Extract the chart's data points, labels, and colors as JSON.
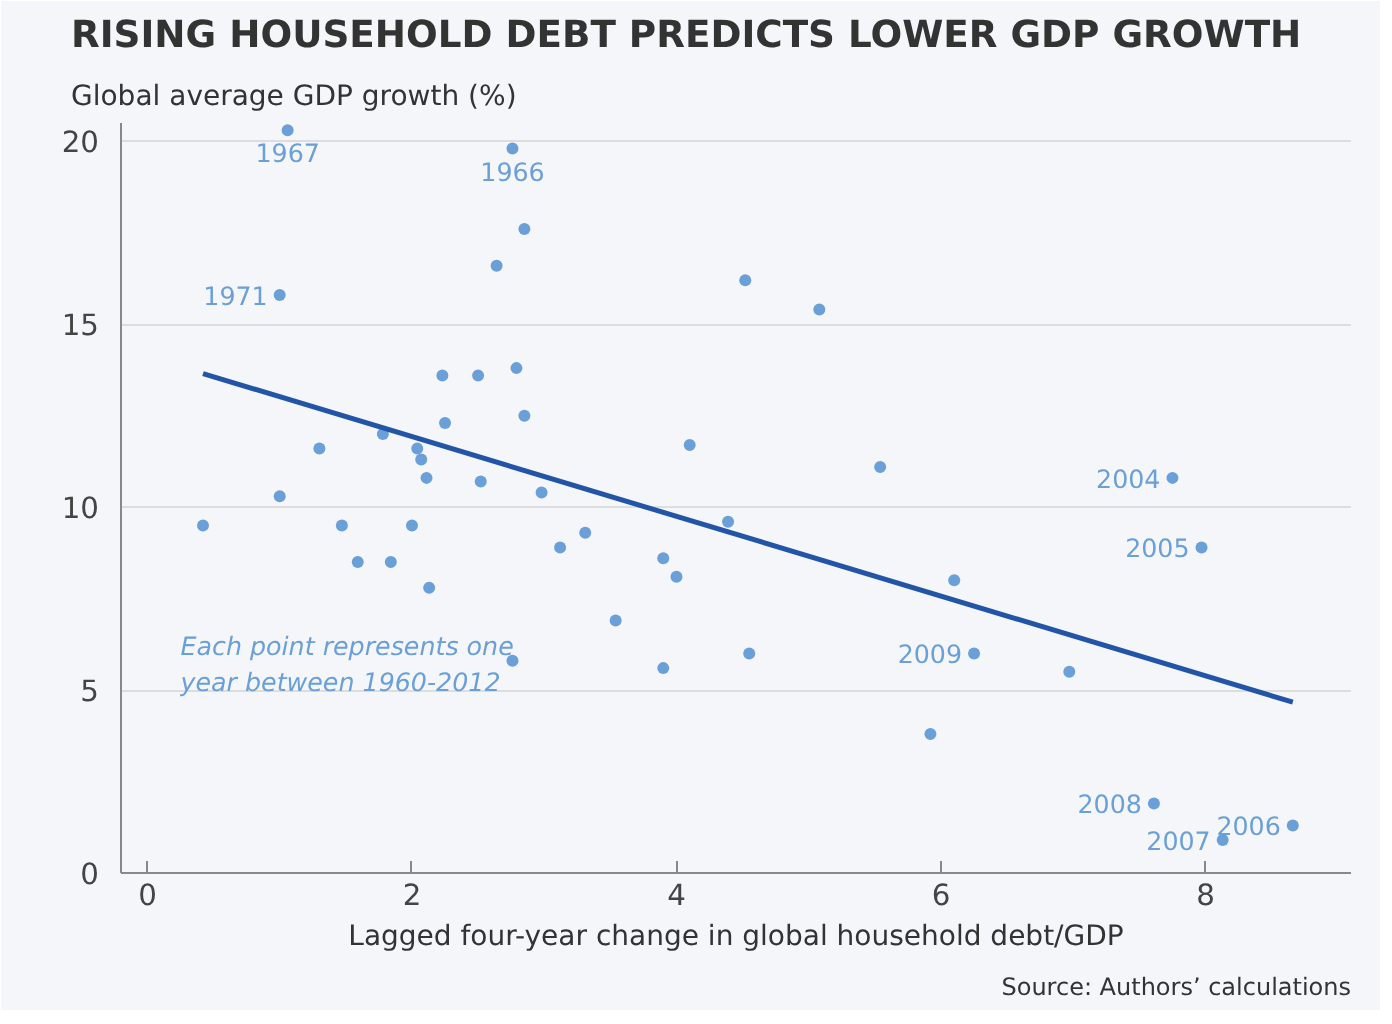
{
  "chart_data": {
    "type": "scatter",
    "title": "RISING HOUSEHOLD DEBT PREDICTS LOWER GDP GROWTH",
    "ylabel": "Global average GDP growth (%)",
    "xlabel": "Lagged four-year change in global household debt/GDP",
    "xlim": [
      -0.2,
      9.1
    ],
    "ylim": [
      0,
      20.5
    ],
    "xticks": [
      0,
      2,
      4,
      6,
      8
    ],
    "yticks": [
      0,
      5,
      10,
      15,
      20
    ],
    "grid": "y",
    "series": [
      {
        "marker": "circle",
        "color": "#6a9fd8",
        "x": [
          1.06,
          2.76,
          2.85,
          2.64,
          1.0,
          2.23,
          2.5,
          2.79,
          2.25,
          2.85,
          1.3,
          1.78,
          2.04,
          2.07,
          2.11,
          2.52,
          2.98,
          0.42,
          1.0,
          1.47,
          2.0,
          1.59,
          1.84,
          2.13,
          3.12,
          3.31,
          3.54,
          2.76,
          4.1,
          4.39,
          3.9,
          4.0,
          3.9,
          4.55,
          4.52,
          5.08,
          5.54,
          7.75,
          7.97,
          6.1,
          6.25,
          6.97,
          5.92,
          7.61,
          8.13,
          8.66
        ],
        "values": [
          20.3,
          19.8,
          17.6,
          16.6,
          15.8,
          13.6,
          13.6,
          13.8,
          12.3,
          12.5,
          11.6,
          12.0,
          11.6,
          11.3,
          10.8,
          10.7,
          10.4,
          9.5,
          10.3,
          9.5,
          9.5,
          8.5,
          8.5,
          7.8,
          8.9,
          9.3,
          6.9,
          5.8,
          11.7,
          9.6,
          8.6,
          8.1,
          5.6,
          6.0,
          16.2,
          15.4,
          11.1,
          10.8,
          8.9,
          8.0,
          6.0,
          5.5,
          3.8,
          1.9,
          0.9,
          1.3
        ]
      },
      {
        "type": "line",
        "marker": "none",
        "color": "#2255a8",
        "x": [
          0.42,
          8.66
        ],
        "values": [
          13.65,
          4.67
        ]
      }
    ],
    "annotations": [
      "Each point represents one\nyear between 1960-2012",
      {
        "text": "1967",
        "x": 1.06,
        "y": 20.3
      },
      {
        "text": "1966",
        "x": 2.76,
        "y": 19.8
      },
      {
        "text": "1971",
        "x": 1.0,
        "y": 15.8
      },
      {
        "text": "2004",
        "x": 7.75,
        "y": 10.8
      },
      {
        "text": "2005",
        "x": 7.97,
        "y": 8.9
      },
      {
        "text": "2009",
        "x": 6.25,
        "y": 6.0
      },
      {
        "text": "2008",
        "x": 7.61,
        "y": 1.9
      },
      {
        "text": "2007",
        "x": 8.13,
        "y": 0.9
      },
      {
        "text": "2006",
        "x": 8.66,
        "y": 1.3
      },
      "Source: Authors’ calculations"
    ]
  }
}
